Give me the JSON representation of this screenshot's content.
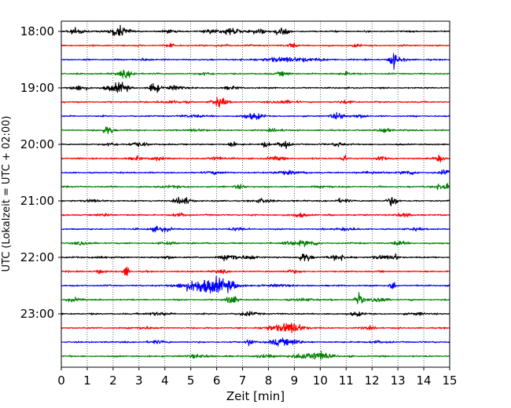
{
  "chart_data": {
    "type": "line",
    "title": "",
    "xlabel": "Zeit  [min]",
    "ylabel": "UTC (Lokalzeit = UTC + 02:00)",
    "xlim": [
      0,
      15
    ],
    "x_ticks": [
      "0",
      "1",
      "2",
      "3",
      "4",
      "5",
      "6",
      "7",
      "8",
      "9",
      "10",
      "11",
      "12",
      "13",
      "14",
      "15"
    ],
    "y_ticks": [
      "18:00",
      "19:00",
      "20:00",
      "21:00",
      "22:00",
      "23:00"
    ],
    "grid": "vertical dotted",
    "traces": [
      {
        "start": "18:00",
        "color": "#000000",
        "events": [
          [
            0.6,
            0.35,
            0.3
          ],
          [
            2.1,
            0.3,
            0.25
          ],
          [
            2.3,
            0.4,
            0.35
          ],
          [
            4.1,
            0.2,
            0.2
          ],
          [
            5.8,
            0.25,
            0.3
          ],
          [
            6.6,
            0.5,
            0.3
          ],
          [
            7.6,
            0.3,
            0.3
          ],
          [
            8.5,
            0.5,
            0.25
          ]
        ]
      },
      {
        "start": "18:15",
        "color": "#ff0000",
        "events": [
          [
            4.2,
            0.15,
            0.2
          ],
          [
            6.3,
            0.15,
            0.2
          ],
          [
            8.9,
            0.3,
            0.15
          ],
          [
            11.4,
            0.15,
            0.15
          ]
        ]
      },
      {
        "start": "18:30",
        "color": "#0000ff",
        "events": [
          [
            8.8,
            0.25,
            1.2
          ],
          [
            3.2,
            0.12,
            0.3
          ],
          [
            12.8,
            1.0,
            0.12
          ],
          [
            13.1,
            0.2,
            0.3
          ]
        ]
      },
      {
        "start": "18:45",
        "color": "#008000",
        "events": [
          [
            2.5,
            0.35,
            0.35
          ],
          [
            5.6,
            0.15,
            0.3
          ],
          [
            8.6,
            0.2,
            0.3
          ],
          [
            11.0,
            0.15,
            0.3
          ]
        ]
      },
      {
        "start": "19:00",
        "color": "#000000",
        "events": [
          [
            0.7,
            0.3,
            0.3
          ],
          [
            1.9,
            0.3,
            0.3
          ],
          [
            2.35,
            0.6,
            0.25
          ],
          [
            3.6,
            0.7,
            0.18
          ],
          [
            4.4,
            0.25,
            0.35
          ],
          [
            6.6,
            0.15,
            0.3
          ]
        ]
      },
      {
        "start": "19:15",
        "color": "#ff0000",
        "events": [
          [
            6.1,
            0.5,
            0.3
          ],
          [
            4.3,
            0.15,
            0.5
          ],
          [
            8.6,
            0.2,
            0.4
          ],
          [
            11.0,
            0.15,
            0.3
          ]
        ]
      },
      {
        "start": "19:30",
        "color": "#0000ff",
        "events": [
          [
            7.4,
            0.35,
            0.4
          ],
          [
            10.7,
            0.35,
            0.3
          ],
          [
            11.5,
            0.2,
            0.3
          ],
          [
            5.1,
            0.15,
            0.4
          ]
        ]
      },
      {
        "start": "19:45",
        "color": "#008000",
        "events": [
          [
            1.8,
            0.5,
            0.2
          ],
          [
            12.5,
            0.35,
            0.2
          ],
          [
            5.2,
            0.15,
            0.3
          ],
          [
            8.2,
            0.15,
            0.3
          ]
        ]
      },
      {
        "start": "20:00",
        "color": "#000000",
        "events": [
          [
            1.9,
            0.2,
            0.25
          ],
          [
            3.0,
            0.25,
            0.35
          ],
          [
            6.6,
            0.4,
            0.12
          ],
          [
            7.9,
            0.35,
            0.15
          ],
          [
            8.6,
            0.55,
            0.2
          ],
          [
            10.7,
            0.25,
            0.25
          ]
        ]
      },
      {
        "start": "20:15",
        "color": "#ff0000",
        "events": [
          [
            2.9,
            0.25,
            0.2
          ],
          [
            3.7,
            0.2,
            0.3
          ],
          [
            6.0,
            0.2,
            0.3
          ],
          [
            8.3,
            0.2,
            0.35
          ],
          [
            10.9,
            0.55,
            0.1
          ],
          [
            12.4,
            0.3,
            0.2
          ],
          [
            14.6,
            0.35,
            0.2
          ]
        ]
      },
      {
        "start": "20:30",
        "color": "#0000ff",
        "events": [
          [
            5.9,
            0.15,
            0.4
          ],
          [
            8.8,
            0.2,
            0.5
          ],
          [
            12.0,
            0.15,
            0.4
          ],
          [
            13.4,
            0.25,
            0.3
          ],
          [
            14.8,
            0.3,
            0.2
          ]
        ]
      },
      {
        "start": "20:45",
        "color": "#008000",
        "events": [
          [
            6.9,
            0.25,
            0.2
          ],
          [
            14.8,
            0.5,
            0.35
          ],
          [
            4.3,
            0.12,
            0.4
          ],
          [
            10.2,
            0.12,
            0.4
          ]
        ]
      },
      {
        "start": "21:00",
        "color": "#000000",
        "events": [
          [
            4.7,
            0.45,
            0.3
          ],
          [
            12.8,
            0.55,
            0.2
          ],
          [
            1.2,
            0.15,
            0.3
          ],
          [
            7.8,
            0.2,
            0.4
          ],
          [
            10.9,
            0.2,
            0.3
          ]
        ]
      },
      {
        "start": "21:15",
        "color": "#ff0000",
        "events": [
          [
            1.7,
            0.15,
            0.3
          ],
          [
            4.6,
            0.2,
            0.3
          ],
          [
            9.2,
            0.25,
            0.3
          ],
          [
            13.2,
            0.2,
            0.3
          ]
        ]
      },
      {
        "start": "21:30",
        "color": "#0000ff",
        "events": [
          [
            3.8,
            0.3,
            0.4
          ],
          [
            6.8,
            0.2,
            0.3
          ],
          [
            11.0,
            0.15,
            0.4
          ],
          [
            13.7,
            0.15,
            0.3
          ]
        ]
      },
      {
        "start": "21:45",
        "color": "#008000",
        "events": [
          [
            0.8,
            0.15,
            0.4
          ],
          [
            4.2,
            0.15,
            0.3
          ],
          [
            8.8,
            0.2,
            0.4
          ],
          [
            9.5,
            0.3,
            0.4
          ],
          [
            13.1,
            0.2,
            0.3
          ]
        ]
      },
      {
        "start": "22:00",
        "color": "#000000",
        "events": [
          [
            6.5,
            0.4,
            0.35
          ],
          [
            7.3,
            0.25,
            0.3
          ],
          [
            9.4,
            0.5,
            0.25
          ],
          [
            10.7,
            0.3,
            0.4
          ],
          [
            12.4,
            0.2,
            0.4
          ],
          [
            12.9,
            0.4,
            0.12
          ],
          [
            1.5,
            0.15,
            0.3
          ],
          [
            4.1,
            0.15,
            0.3
          ]
        ]
      },
      {
        "start": "22:15",
        "color": "#ff0000",
        "events": [
          [
            2.5,
            0.7,
            0.1
          ],
          [
            1.5,
            0.2,
            0.2
          ],
          [
            6.1,
            0.15,
            0.3
          ],
          [
            8.9,
            0.2,
            0.3
          ]
        ]
      },
      {
        "start": "22:30",
        "color": "#0000ff",
        "events": [
          [
            5.6,
            0.9,
            0.9
          ],
          [
            6.4,
            0.3,
            0.4
          ],
          [
            12.8,
            0.55,
            0.12
          ],
          [
            8.4,
            0.15,
            0.4
          ]
        ]
      },
      {
        "start": "22:45",
        "color": "#008000",
        "events": [
          [
            0.5,
            0.2,
            0.3
          ],
          [
            6.6,
            0.65,
            0.18
          ],
          [
            11.5,
            0.75,
            0.15
          ],
          [
            12.3,
            0.3,
            0.3
          ],
          [
            9.4,
            0.15,
            0.4
          ]
        ]
      },
      {
        "start": "23:00",
        "color": "#000000",
        "events": [
          [
            3.7,
            0.2,
            0.4
          ],
          [
            7.2,
            0.2,
            0.4
          ],
          [
            11.4,
            0.2,
            0.3
          ],
          [
            13.8,
            0.15,
            0.3
          ]
        ]
      },
      {
        "start": "23:15",
        "color": "#ff0000",
        "events": [
          [
            8.9,
            0.65,
            0.45
          ],
          [
            8.1,
            0.25,
            0.4
          ],
          [
            3.2,
            0.15,
            0.4
          ],
          [
            11.9,
            0.15,
            0.3
          ]
        ]
      },
      {
        "start": "23:30",
        "color": "#0000ff",
        "events": [
          [
            7.3,
            0.4,
            0.15
          ],
          [
            8.4,
            0.35,
            0.4
          ],
          [
            9.0,
            0.3,
            0.3
          ],
          [
            3.7,
            0.15,
            0.4
          ],
          [
            12.2,
            0.15,
            0.3
          ]
        ]
      },
      {
        "start": "23:45",
        "color": "#008000",
        "events": [
          [
            9.6,
            0.4,
            0.7
          ],
          [
            10.1,
            0.35,
            0.2
          ],
          [
            5.3,
            0.15,
            0.5
          ],
          [
            7.8,
            0.15,
            0.4
          ]
        ]
      }
    ]
  }
}
